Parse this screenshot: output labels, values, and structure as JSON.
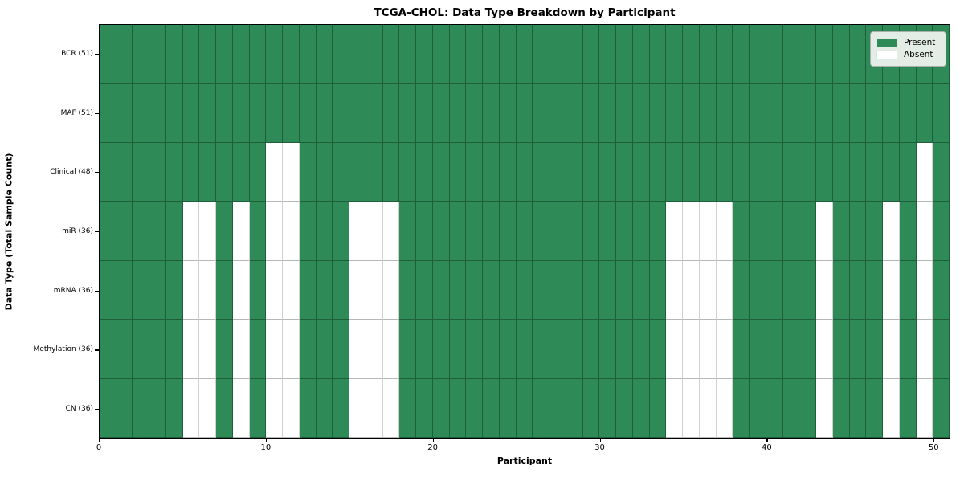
{
  "chart_data": {
    "type": "heatmap",
    "title": "TCGA-CHOL: Data Type Breakdown by Participant",
    "xlabel": "Participant",
    "ylabel": "Data Type (Total Sample Count)",
    "x_range": [
      0,
      51
    ],
    "n_participants": 51,
    "x_ticks": [
      0,
      10,
      20,
      30,
      40,
      50
    ],
    "grid": true,
    "legend_position": "upper right",
    "legend": [
      "Present",
      "Absent"
    ],
    "colors": {
      "present": "#2e8b57",
      "absent": "#ffffff"
    },
    "value_meaning": {
      "1": "Present",
      "0": "Absent"
    },
    "rows": [
      {
        "label": "BCR (51)",
        "name": "BCR",
        "total": 51,
        "values": [
          1,
          1,
          1,
          1,
          1,
          1,
          1,
          1,
          1,
          1,
          1,
          1,
          1,
          1,
          1,
          1,
          1,
          1,
          1,
          1,
          1,
          1,
          1,
          1,
          1,
          1,
          1,
          1,
          1,
          1,
          1,
          1,
          1,
          1,
          1,
          1,
          1,
          1,
          1,
          1,
          1,
          1,
          1,
          1,
          1,
          1,
          1,
          1,
          1,
          1,
          1
        ]
      },
      {
        "label": "MAF (51)",
        "name": "MAF",
        "total": 51,
        "values": [
          1,
          1,
          1,
          1,
          1,
          1,
          1,
          1,
          1,
          1,
          1,
          1,
          1,
          1,
          1,
          1,
          1,
          1,
          1,
          1,
          1,
          1,
          1,
          1,
          1,
          1,
          1,
          1,
          1,
          1,
          1,
          1,
          1,
          1,
          1,
          1,
          1,
          1,
          1,
          1,
          1,
          1,
          1,
          1,
          1,
          1,
          1,
          1,
          1,
          1,
          1
        ]
      },
      {
        "label": "Clinical (48)",
        "name": "Clinical",
        "total": 48,
        "values": [
          1,
          1,
          1,
          1,
          1,
          1,
          1,
          1,
          1,
          1,
          0,
          0,
          1,
          1,
          1,
          1,
          1,
          1,
          1,
          1,
          1,
          1,
          1,
          1,
          1,
          1,
          1,
          1,
          1,
          1,
          1,
          1,
          1,
          1,
          1,
          1,
          1,
          1,
          1,
          1,
          1,
          1,
          1,
          1,
          1,
          1,
          1,
          1,
          1,
          0,
          1
        ]
      },
      {
        "label": "miR (36)",
        "name": "miR",
        "total": 36,
        "values": [
          1,
          1,
          1,
          1,
          1,
          0,
          0,
          1,
          0,
          1,
          0,
          0,
          1,
          1,
          1,
          0,
          0,
          0,
          1,
          1,
          1,
          1,
          1,
          1,
          1,
          1,
          1,
          1,
          1,
          1,
          1,
          1,
          1,
          1,
          0,
          0,
          0,
          0,
          1,
          1,
          1,
          1,
          1,
          0,
          1,
          1,
          1,
          0,
          1,
          0,
          1
        ]
      },
      {
        "label": "mRNA (36)",
        "name": "mRNA",
        "total": 36,
        "values": [
          1,
          1,
          1,
          1,
          1,
          0,
          0,
          1,
          0,
          1,
          0,
          0,
          1,
          1,
          1,
          0,
          0,
          0,
          1,
          1,
          1,
          1,
          1,
          1,
          1,
          1,
          1,
          1,
          1,
          1,
          1,
          1,
          1,
          1,
          0,
          0,
          0,
          0,
          1,
          1,
          1,
          1,
          1,
          0,
          1,
          1,
          1,
          0,
          1,
          0,
          1
        ]
      },
      {
        "label": "Methylation (36)",
        "name": "Methylation",
        "total": 36,
        "values": [
          1,
          1,
          1,
          1,
          1,
          0,
          0,
          1,
          0,
          1,
          0,
          0,
          1,
          1,
          1,
          0,
          0,
          0,
          1,
          1,
          1,
          1,
          1,
          1,
          1,
          1,
          1,
          1,
          1,
          1,
          1,
          1,
          1,
          1,
          0,
          0,
          0,
          0,
          1,
          1,
          1,
          1,
          1,
          0,
          1,
          1,
          1,
          0,
          1,
          0,
          1
        ]
      },
      {
        "label": "CN (36)",
        "name": "CN",
        "total": 36,
        "values": [
          1,
          1,
          1,
          1,
          1,
          0,
          0,
          1,
          0,
          1,
          0,
          0,
          1,
          1,
          1,
          0,
          0,
          0,
          1,
          1,
          1,
          1,
          1,
          1,
          1,
          1,
          1,
          1,
          1,
          1,
          1,
          1,
          1,
          1,
          0,
          0,
          0,
          0,
          1,
          1,
          1,
          1,
          1,
          0,
          1,
          1,
          1,
          0,
          1,
          0,
          1
        ]
      }
    ]
  }
}
